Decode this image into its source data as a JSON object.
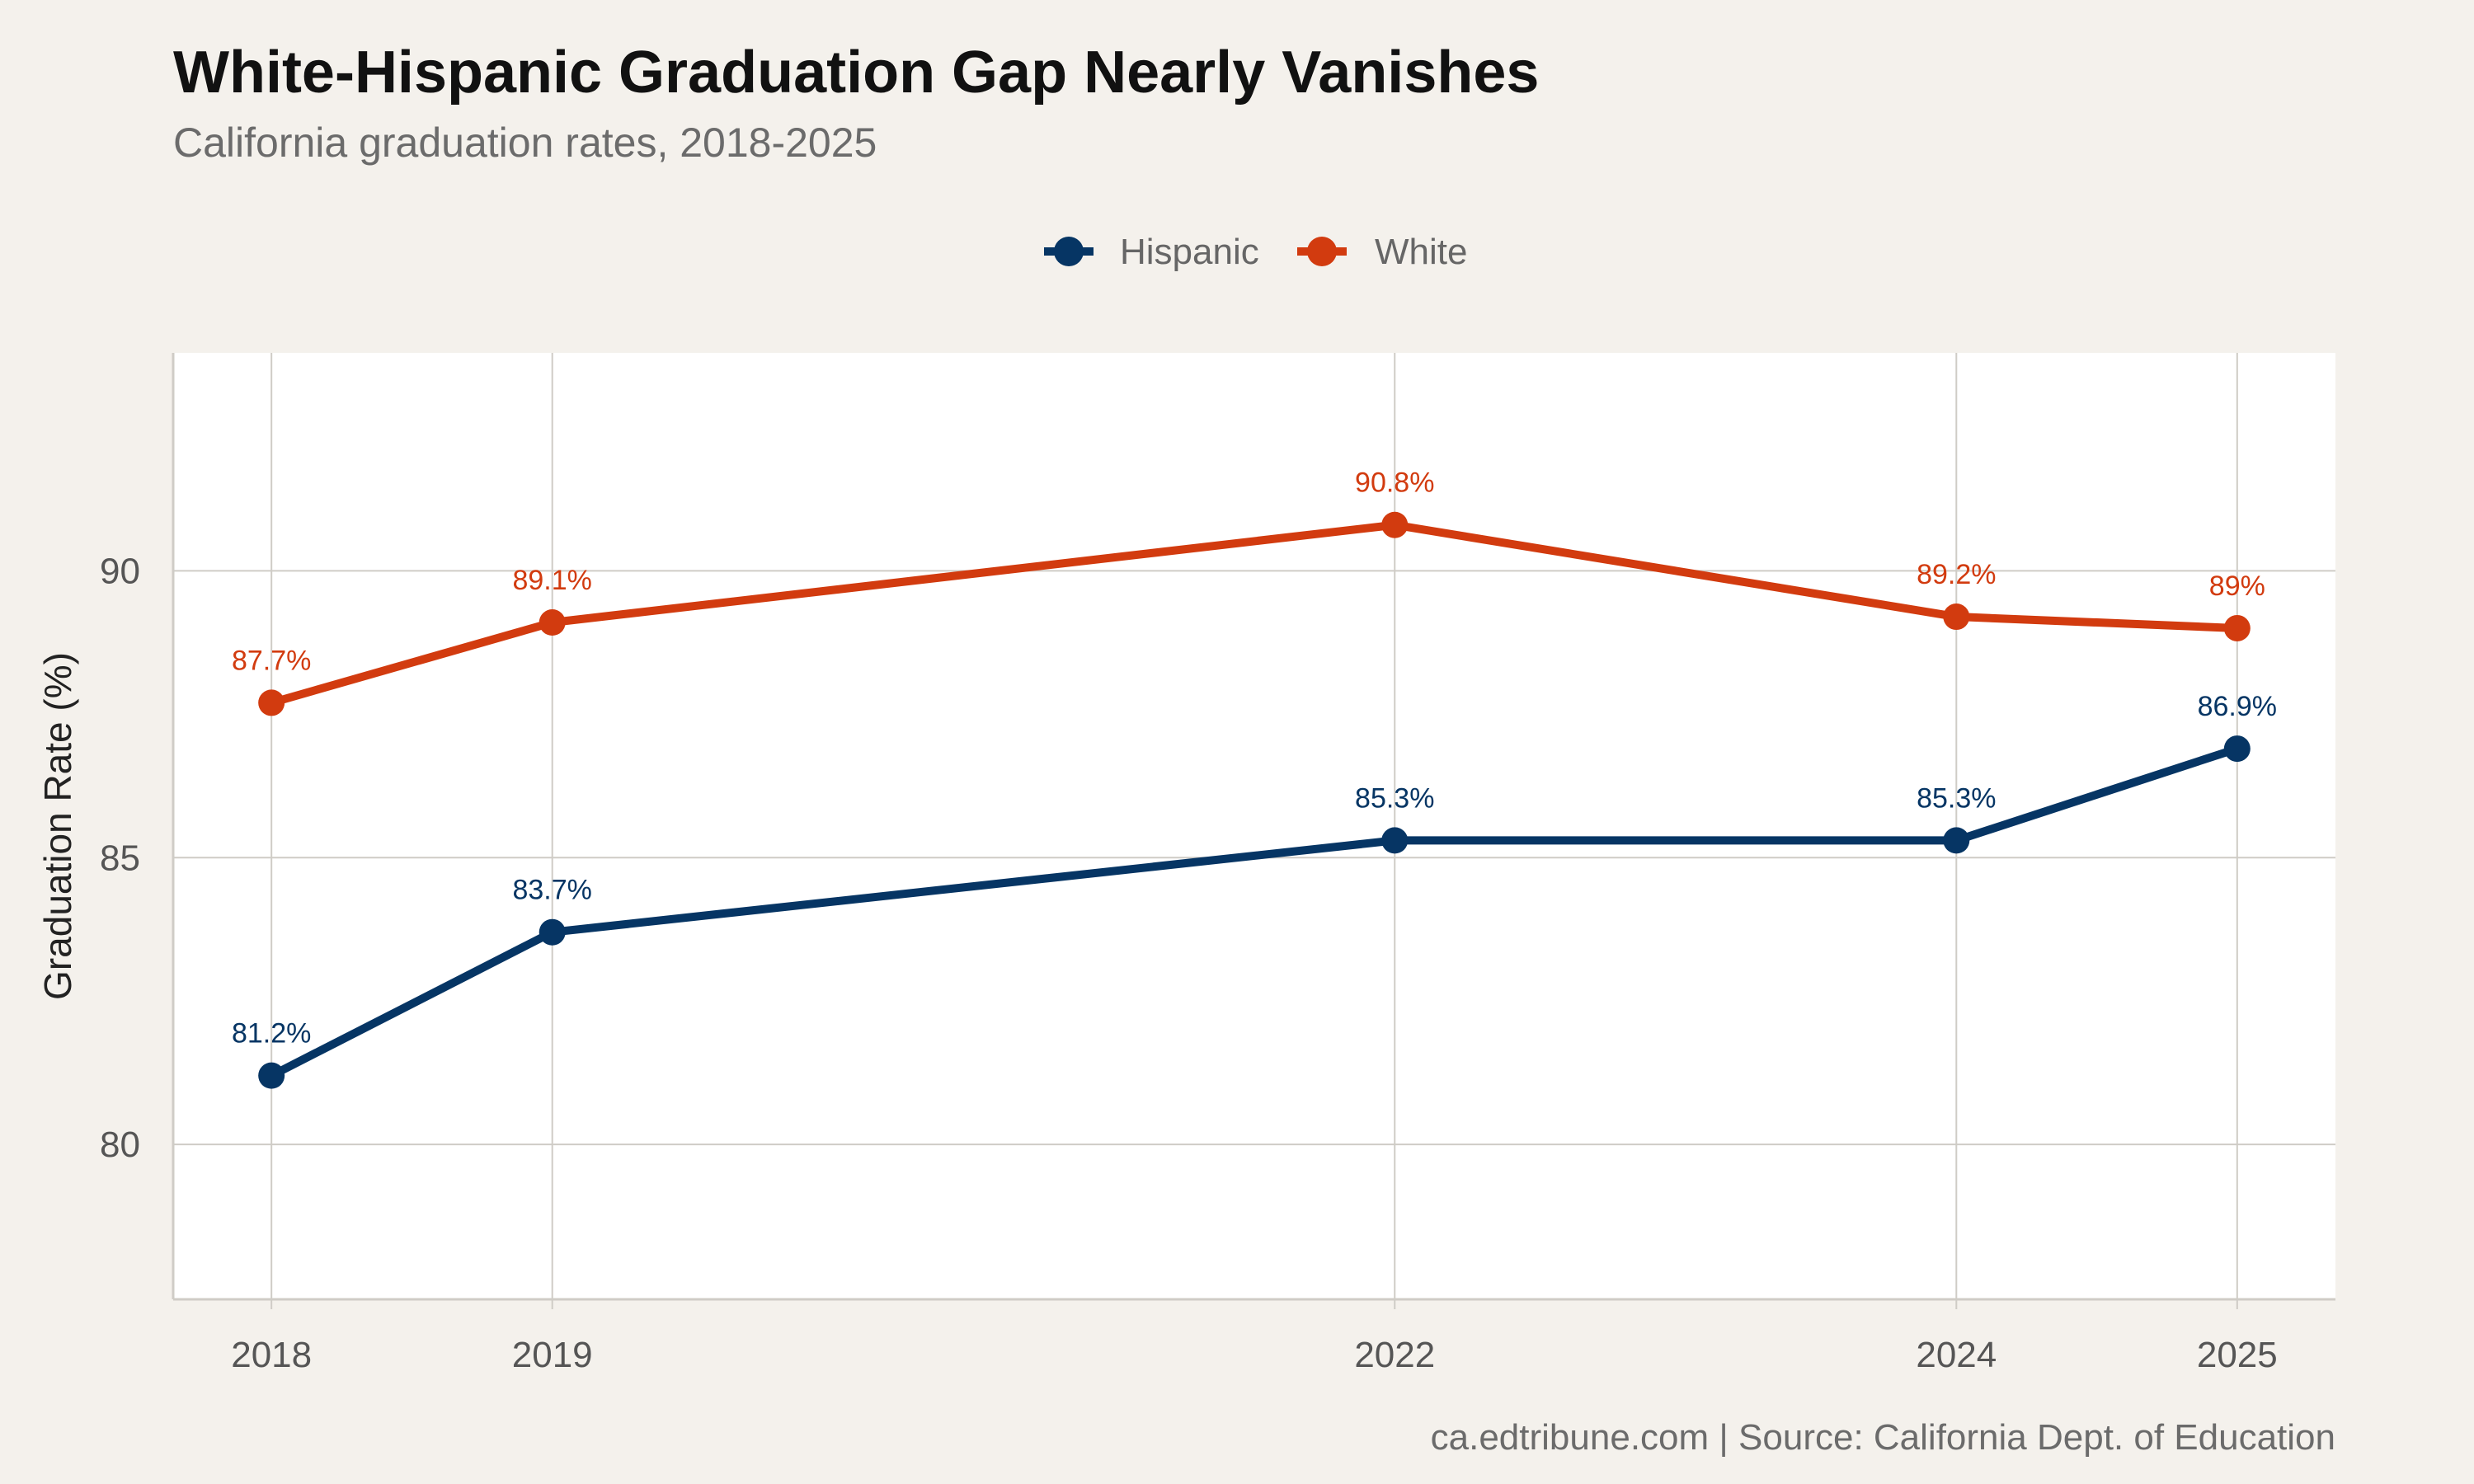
{
  "title": "White-Hispanic Graduation Gap Nearly Vanishes",
  "subtitle": "California graduation rates, 2018-2025",
  "caption": "ca.edtribune.com | Source: California Dept. of Education",
  "colors": {
    "background": "#f4f1ec",
    "panel": "#ffffff",
    "grid": "#cfccc6",
    "hispanic": "#063564",
    "white": "#d23b0f"
  },
  "chart_data": {
    "type": "line",
    "title": "White-Hispanic Graduation Gap Nearly Vanishes",
    "subtitle": "California graduation rates, 2018-2025",
    "xlabel": "",
    "ylabel": "Graduation Rate (%)",
    "x": [
      2018,
      2019,
      2022,
      2024,
      2025
    ],
    "x_tick_labels": [
      "2018",
      "2019",
      "2022",
      "2024",
      "2025"
    ],
    "xlim": [
      2017.65,
      2025.35
    ],
    "ylim": [
      77.3,
      93.8
    ],
    "y_ticks": [
      80,
      85,
      90
    ],
    "y_tick_labels": [
      "80",
      "85",
      "90"
    ],
    "grid": true,
    "legend_position": "top",
    "series": [
      {
        "name": "Hispanic",
        "color": "#063564",
        "values": [
          81.2,
          83.7,
          85.3,
          85.3,
          86.9
        ],
        "labels": [
          "81.2%",
          "83.7%",
          "85.3%",
          "85.3%",
          "86.9%"
        ]
      },
      {
        "name": "White",
        "color": "#d23b0f",
        "values": [
          87.7,
          89.1,
          90.8,
          89.2,
          89.0
        ],
        "labels": [
          "87.7%",
          "89.1%",
          "90.8%",
          "89.2%",
          "89%"
        ]
      }
    ]
  }
}
